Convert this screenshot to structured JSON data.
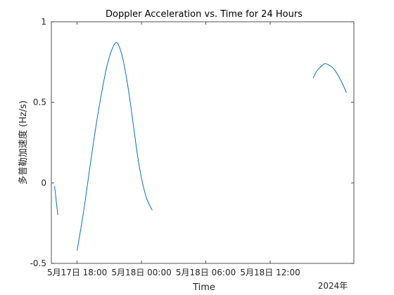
{
  "chart_data": {
    "type": "line",
    "title": "Doppler Acceleration vs. Time for 24 Hours",
    "xlabel": "Time",
    "ylabel": "多普勒加速度 (Hz/s)",
    "x_year_label": "2024年",
    "x_range_hours": [
      -2.4,
      25.8
    ],
    "x_ticks": [
      {
        "hour": 0,
        "label": "5月17日 18:00"
      },
      {
        "hour": 6,
        "label": "5月18日 00:00"
      },
      {
        "hour": 12,
        "label": "5月18日 06:00"
      },
      {
        "hour": 18,
        "label": "5月18日 12:00"
      }
    ],
    "ylim": [
      -0.5,
      1
    ],
    "y_ticks": [
      {
        "value": -0.5,
        "label": "-0.5"
      },
      {
        "value": 0,
        "label": "0"
      },
      {
        "value": 0.5,
        "label": "0.5"
      },
      {
        "value": 1,
        "label": "1"
      }
    ],
    "grid": false,
    "line_color": "#0072BD",
    "series": [
      {
        "segments": [
          {
            "x": [
              -2.1,
              -1.8
            ],
            "y": [
              -0.02,
              -0.2
            ]
          },
          {
            "x": [
              0.0,
              0.6,
              1.2,
              1.8,
              2.4,
              2.8,
              3.2,
              3.6,
              3.9,
              4.3,
              4.8,
              5.3,
              5.8,
              6.4,
              7.0
            ],
            "y": [
              -0.42,
              -0.18,
              0.1,
              0.37,
              0.6,
              0.73,
              0.82,
              0.87,
              0.85,
              0.76,
              0.57,
              0.33,
              0.1,
              -0.08,
              -0.17
            ]
          },
          {
            "x": [
              22.0,
              22.3,
              22.7,
              23.1,
              23.5,
              23.9,
              24.3,
              24.7,
              25.1
            ],
            "y": [
              0.65,
              0.69,
              0.72,
              0.74,
              0.73,
              0.71,
              0.67,
              0.62,
              0.56
            ]
          }
        ]
      }
    ]
  }
}
